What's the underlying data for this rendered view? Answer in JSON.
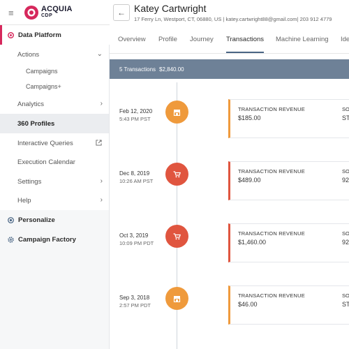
{
  "brand": {
    "name": "ACQUIA",
    "sub": "CDP",
    "accent": "#d6285c"
  },
  "sidebar": {
    "sections": [
      {
        "label": "Data Platform",
        "icon": "target-icon"
      },
      {
        "label": "Personalize",
        "icon": "globe-icon"
      },
      {
        "label": "Campaign Factory",
        "icon": "gear-icon"
      }
    ],
    "items": {
      "actions": "Actions",
      "campaigns": "Campaigns",
      "campaigns_plus": "Campaigns+",
      "analytics": "Analytics",
      "profiles": "360 Profiles",
      "interactive": "Interactive Queries",
      "execution": "Execution Calendar",
      "settings": "Settings",
      "help": "Help"
    }
  },
  "header": {
    "name": "Katey Cartwright",
    "contact": "17 Ferry Ln, Westport, CT, 06880, US | katey.cartwright88@gmail.com| 203 912 4779"
  },
  "tabs": [
    "Overview",
    "Profile",
    "Journey",
    "Transactions",
    "Machine Learning",
    "Identity"
  ],
  "summary": {
    "count": "5 Transactions",
    "total": "$2,840.00"
  },
  "timeline": [
    {
      "date": "Feb 12, 2020",
      "time": "5:43 PM PST",
      "color": "orange",
      "icon": "store-icon",
      "label": "TRANSACTION REVENUE",
      "value": "$185.00",
      "label2": "SO",
      "value2": "ST"
    },
    {
      "date": "Dec 8, 2019",
      "time": "10:26 AM PST",
      "color": "red",
      "icon": "cart-icon",
      "label": "TRANSACTION REVENUE",
      "value": "$489.00",
      "label2": "SO",
      "value2": "92"
    },
    {
      "date": "Oct 3, 2019",
      "time": "10:09 PM PDT",
      "color": "red",
      "icon": "cart-icon",
      "label": "TRANSACTION REVENUE",
      "value": "$1,460.00",
      "label2": "SO",
      "value2": "92"
    },
    {
      "date": "Sep 3, 2018",
      "time": "2:57 PM PDT",
      "color": "orange",
      "icon": "store-icon",
      "label": "TRANSACTION REVENUE",
      "value": "$46.00",
      "label2": "SO",
      "value2": "ST"
    }
  ]
}
